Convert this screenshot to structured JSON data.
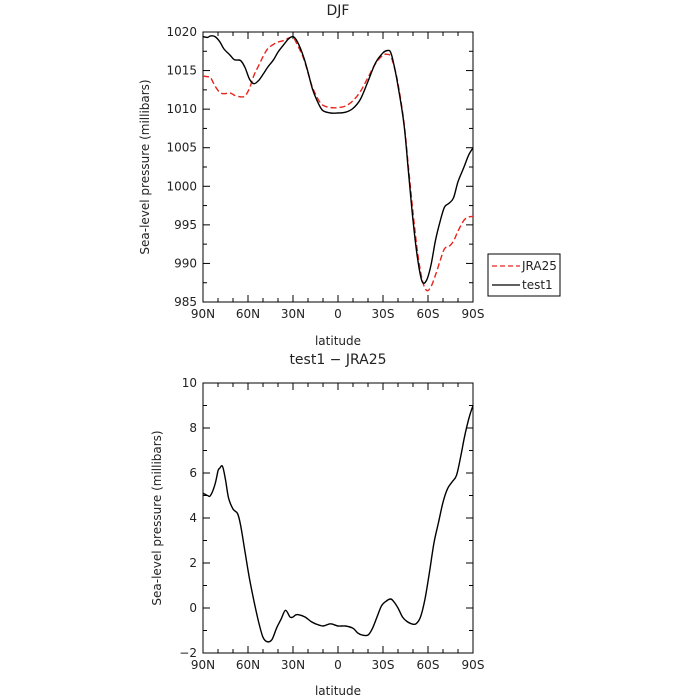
{
  "chart_data": [
    {
      "type": "line",
      "title": "DJF",
      "xlabel": "latitude",
      "ylabel": "Sea-level pressure (millibars)",
      "xlim": [
        90,
        -90
      ],
      "ylim": [
        985,
        1020
      ],
      "x_ticks": [
        90,
        60,
        30,
        0,
        -30,
        -60,
        -90
      ],
      "x_tick_labels": [
        "90N",
        "60N",
        "30N",
        "0",
        "30S",
        "60S",
        "90S"
      ],
      "y_ticks": [
        985,
        990,
        995,
        1000,
        1005,
        1010,
        1015,
        1020
      ],
      "y_tick_labels": [
        "985",
        "990",
        "995",
        "1000",
        "1005",
        "1010",
        "1015",
        "1020"
      ],
      "legend_position": "right",
      "series": [
        {
          "name": "JRA25",
          "color": "#e8241c",
          "dash": "dashed",
          "x": [
            90,
            87,
            85,
            82,
            79,
            76,
            72,
            69,
            65,
            62,
            59,
            56,
            53,
            50,
            47,
            43,
            40,
            36,
            33,
            30,
            27,
            23,
            20,
            17,
            13,
            10,
            5,
            0,
            -5,
            -10,
            -15,
            -20,
            -25,
            -30,
            -33,
            -35,
            -37,
            -40,
            -44,
            -47,
            -50,
            -53,
            -56,
            -59,
            -62,
            -65,
            -68,
            -71,
            -74,
            -77,
            -80,
            -84,
            -87,
            -90
          ],
          "y": [
            1014.3,
            1014.2,
            1014.1,
            1013.0,
            1012.2,
            1012.0,
            1012.1,
            1011.8,
            1011.6,
            1011.7,
            1012.7,
            1014.4,
            1015.6,
            1016.8,
            1017.8,
            1018.4,
            1018.7,
            1018.9,
            1019.2,
            1019.3,
            1018.3,
            1016.6,
            1014.7,
            1012.8,
            1011.2,
            1010.5,
            1010.2,
            1010.2,
            1010.4,
            1011.1,
            1012.3,
            1014.1,
            1015.9,
            1017.0,
            1017.1,
            1016.9,
            1015.8,
            1013.3,
            1008.2,
            1002.4,
            996.6,
            991.5,
            988.0,
            986.5,
            987.0,
            988.5,
            990.3,
            991.9,
            992.2,
            992.9,
            994.2,
            995.6,
            996.0,
            996.1
          ]
        },
        {
          "name": "test1",
          "color": "#000000",
          "dash": "solid",
          "x": [
            90,
            87,
            85,
            82,
            79,
            76,
            72,
            69,
            65,
            62,
            59,
            56,
            53,
            50,
            47,
            43,
            40,
            36,
            33,
            30,
            27,
            23,
            20,
            17,
            13,
            10,
            5,
            0,
            -5,
            -10,
            -15,
            -20,
            -25,
            -30,
            -33,
            -35,
            -37,
            -40,
            -44,
            -47,
            -50,
            -53,
            -56,
            -59,
            -62,
            -65,
            -68,
            -71,
            -74,
            -77,
            -80,
            -84,
            -87,
            -90
          ],
          "y": [
            1019.4,
            1019.3,
            1019.5,
            1019.4,
            1018.8,
            1017.8,
            1017.0,
            1016.4,
            1016.3,
            1015.4,
            1013.9,
            1013.3,
            1013.7,
            1014.5,
            1015.4,
            1016.4,
            1017.4,
            1018.4,
            1019.1,
            1019.4,
            1018.7,
            1016.8,
            1014.8,
            1012.6,
            1010.7,
            1009.8,
            1009.5,
            1009.5,
            1009.6,
            1010.1,
            1011.3,
            1013.6,
            1016.0,
            1017.3,
            1017.6,
            1017.4,
            1016.0,
            1013.0,
            1008.0,
            1001.8,
            995.6,
            990.7,
            987.7,
            987.8,
            989.8,
            993.0,
            995.4,
            997.3,
            997.8,
            998.5,
            1000.6,
            1002.5,
            1004.0,
            1005.0
          ]
        }
      ]
    },
    {
      "type": "line",
      "title": "test1 − JRA25",
      "xlabel": "latitude",
      "ylabel": "Sea-level pressure (millibars)",
      "xlim": [
        90,
        -90
      ],
      "ylim": [
        -2,
        10
      ],
      "x_ticks": [
        90,
        60,
        30,
        0,
        -30,
        -60,
        -90
      ],
      "x_tick_labels": [
        "90N",
        "60N",
        "30N",
        "0",
        "30S",
        "60S",
        "90S"
      ],
      "y_ticks": [
        -2,
        0,
        2,
        4,
        6,
        8,
        10
      ],
      "y_tick_labels": [
        "−2",
        "0",
        "2",
        "4",
        "6",
        "8",
        "10"
      ],
      "series": [
        {
          "color": "#000000",
          "dash": "solid",
          "x": [
            90,
            87,
            85,
            82,
            80,
            79,
            77,
            75,
            73,
            70,
            67,
            65,
            62,
            59,
            56,
            53,
            50,
            47,
            44,
            41,
            38,
            35,
            32,
            30,
            28,
            26,
            22,
            18,
            15,
            10,
            5,
            0,
            -5,
            -10,
            -13,
            -16,
            -20,
            -23,
            -26,
            -29,
            -32,
            -35,
            -37,
            -40,
            -43,
            -46,
            -49,
            -52,
            -55,
            -58,
            -61,
            -64,
            -67,
            -70,
            -73,
            -76,
            -79,
            -82,
            -84,
            -86,
            -88,
            -90
          ],
          "y": [
            5.1,
            5.0,
            5.0,
            5.5,
            6.1,
            6.2,
            6.3,
            5.7,
            4.9,
            4.4,
            4.2,
            3.7,
            2.5,
            1.3,
            0.3,
            -0.6,
            -1.3,
            -1.5,
            -1.4,
            -0.9,
            -0.5,
            -0.1,
            -0.4,
            -0.4,
            -0.3,
            -0.3,
            -0.4,
            -0.6,
            -0.7,
            -0.8,
            -0.7,
            -0.8,
            -0.8,
            -0.9,
            -1.1,
            -1.2,
            -1.2,
            -0.9,
            -0.4,
            0.1,
            0.3,
            0.4,
            0.3,
            0.0,
            -0.4,
            -0.6,
            -0.7,
            -0.7,
            -0.4,
            0.4,
            1.6,
            2.9,
            3.8,
            4.7,
            5.3,
            5.6,
            5.9,
            6.8,
            7.5,
            8.1,
            8.6,
            9.0
          ]
        }
      ]
    }
  ]
}
